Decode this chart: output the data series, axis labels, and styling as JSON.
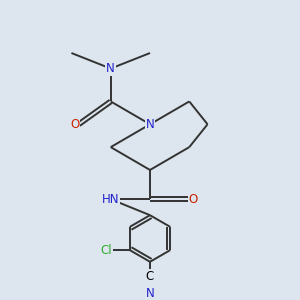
{
  "bg_color": "#dde6ee",
  "atom_colors": {
    "C": "#000000",
    "N": "#2222cc",
    "O": "#cc2200",
    "Cl": "#33aa33",
    "H": "#777777"
  },
  "bond_color": "#333333",
  "lw": 1.4,
  "fs": 8.5
}
